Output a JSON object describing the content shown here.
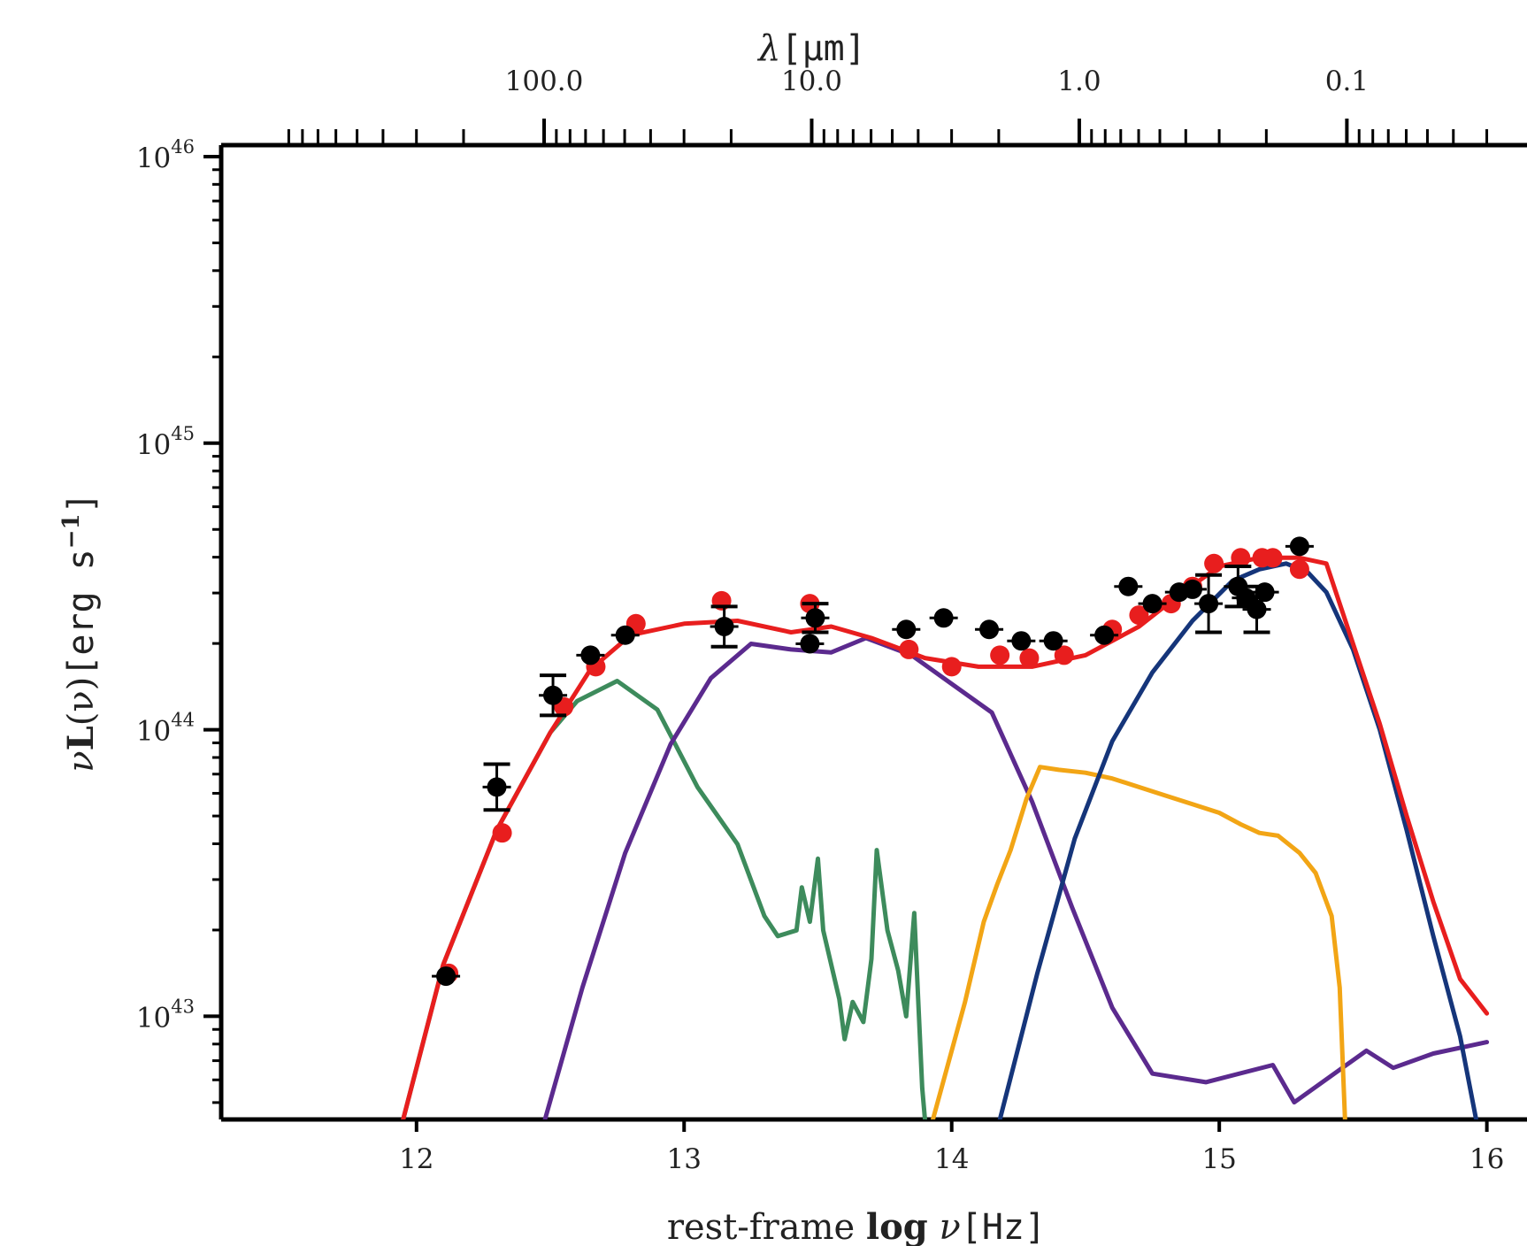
{
  "chart_data": {
    "type": "line",
    "title": "",
    "xlabel_prefix": "rest-frame ",
    "xlabel_bold": "log",
    "xlabel_var": " ν",
    "xlabel_unit": "[Hz]",
    "ylabel_var": "ν",
    "ylabel_bold": "L",
    "ylabel_arg": "(ν)",
    "ylabel_unit": "[erg s",
    "ylabel_unit_exp": "−1",
    "ylabel_unit_end": "]",
    "top_axis_label_var": "λ",
    "top_axis_label_unit": "[μm]",
    "y_scale": "log",
    "xlim": [
      11.27,
      16.15
    ],
    "ylim_log10": [
      42.64,
      46.04
    ],
    "x_ticks": [
      {
        "value": 12,
        "label": "12"
      },
      {
        "value": 13,
        "label": "13"
      },
      {
        "value": 14,
        "label": "14"
      },
      {
        "value": 15,
        "label": "15"
      },
      {
        "value": 16,
        "label": "16"
      }
    ],
    "y_ticks": [
      {
        "log_value": 43,
        "base": "10",
        "exp": "43"
      },
      {
        "log_value": 44,
        "base": "10",
        "exp": "44"
      },
      {
        "log_value": 45,
        "base": "10",
        "exp": "45"
      },
      {
        "log_value": 46,
        "base": "10",
        "exp": "46"
      }
    ],
    "top_ticks": [
      {
        "wavelength_um": 100.0,
        "label": "100.0"
      },
      {
        "wavelength_um": 10.0,
        "label": "10.0"
      },
      {
        "wavelength_um": 1.0,
        "label": "1.0"
      },
      {
        "wavelength_um": 0.1,
        "label": "0.1"
      }
    ],
    "grid": false,
    "legend": "none",
    "series": [
      {
        "color": "#3d8b5c",
        "points": [
          [
            11.95,
            42.64
          ],
          [
            12.1,
            43.18
          ],
          [
            12.3,
            43.65
          ],
          [
            12.5,
            43.99
          ],
          [
            12.6,
            44.1
          ],
          [
            12.75,
            44.17
          ],
          [
            12.9,
            44.07
          ],
          [
            13.05,
            43.8
          ],
          [
            13.2,
            43.6
          ],
          [
            13.3,
            43.35
          ],
          [
            13.35,
            43.28
          ],
          [
            13.42,
            43.3
          ],
          [
            13.44,
            43.45
          ],
          [
            13.47,
            43.33
          ],
          [
            13.5,
            43.55
          ],
          [
            13.52,
            43.3
          ],
          [
            13.58,
            43.06
          ],
          [
            13.6,
            42.92
          ],
          [
            13.63,
            43.05
          ],
          [
            13.67,
            42.98
          ],
          [
            13.7,
            43.2
          ],
          [
            13.72,
            43.58
          ],
          [
            13.76,
            43.3
          ],
          [
            13.8,
            43.16
          ],
          [
            13.83,
            43.0
          ],
          [
            13.86,
            43.36
          ],
          [
            13.89,
            42.75
          ],
          [
            13.9,
            42.64
          ]
        ]
      },
      {
        "color": "#5b2a8e",
        "points": [
          [
            12.48,
            42.64
          ],
          [
            12.62,
            43.1
          ],
          [
            12.78,
            43.57
          ],
          [
            12.95,
            43.95
          ],
          [
            13.1,
            44.18
          ],
          [
            13.25,
            44.3
          ],
          [
            13.4,
            44.28
          ],
          [
            13.55,
            44.27
          ],
          [
            13.68,
            44.32
          ],
          [
            13.85,
            44.26
          ],
          [
            14.0,
            44.16
          ],
          [
            14.15,
            44.06
          ],
          [
            14.3,
            43.75
          ],
          [
            14.45,
            43.38
          ],
          [
            14.6,
            43.03
          ],
          [
            14.75,
            42.8
          ],
          [
            14.95,
            42.77
          ],
          [
            15.2,
            42.83
          ],
          [
            15.28,
            42.7
          ],
          [
            15.55,
            42.88
          ],
          [
            15.65,
            42.82
          ],
          [
            15.8,
            42.87
          ],
          [
            16.0,
            42.91
          ]
        ]
      },
      {
        "color": "#f2a515",
        "points": [
          [
            13.93,
            42.64
          ],
          [
            14.05,
            43.05
          ],
          [
            14.12,
            43.33
          ],
          [
            14.17,
            43.46
          ],
          [
            14.22,
            43.58
          ],
          [
            14.28,
            43.76
          ],
          [
            14.33,
            43.87
          ],
          [
            14.4,
            43.86
          ],
          [
            14.5,
            43.85
          ],
          [
            14.6,
            43.83
          ],
          [
            14.7,
            43.8
          ],
          [
            14.8,
            43.77
          ],
          [
            14.9,
            43.74
          ],
          [
            15.0,
            43.71
          ],
          [
            15.08,
            43.67
          ],
          [
            15.15,
            43.64
          ],
          [
            15.22,
            43.63
          ],
          [
            15.3,
            43.57
          ],
          [
            15.36,
            43.5
          ],
          [
            15.42,
            43.35
          ],
          [
            15.45,
            43.1
          ],
          [
            15.47,
            42.64
          ]
        ]
      },
      {
        "color": "#15357a",
        "points": [
          [
            14.18,
            42.64
          ],
          [
            14.32,
            43.15
          ],
          [
            14.46,
            43.62
          ],
          [
            14.6,
            43.96
          ],
          [
            14.75,
            44.2
          ],
          [
            14.9,
            44.38
          ],
          [
            15.05,
            44.52
          ],
          [
            15.15,
            44.56
          ],
          [
            15.25,
            44.58
          ],
          [
            15.33,
            44.55
          ],
          [
            15.4,
            44.48
          ],
          [
            15.5,
            44.28
          ],
          [
            15.6,
            44.0
          ],
          [
            15.7,
            43.65
          ],
          [
            15.8,
            43.28
          ],
          [
            15.9,
            42.93
          ],
          [
            15.96,
            42.64
          ]
        ]
      },
      {
        "color": "#e81e1e",
        "points": [
          [
            11.95,
            42.64
          ],
          [
            12.1,
            43.18
          ],
          [
            12.3,
            43.65
          ],
          [
            12.5,
            43.99
          ],
          [
            12.65,
            44.21
          ],
          [
            12.8,
            44.33
          ],
          [
            13.0,
            44.37
          ],
          [
            13.2,
            44.38
          ],
          [
            13.4,
            44.34
          ],
          [
            13.55,
            44.36
          ],
          [
            13.7,
            44.32
          ],
          [
            13.9,
            44.25
          ],
          [
            14.1,
            44.22
          ],
          [
            14.3,
            44.22
          ],
          [
            14.5,
            44.26
          ],
          [
            14.7,
            44.36
          ],
          [
            14.85,
            44.47
          ],
          [
            15.0,
            44.57
          ],
          [
            15.15,
            44.6
          ],
          [
            15.3,
            44.6
          ],
          [
            15.4,
            44.58
          ],
          [
            15.5,
            44.3
          ],
          [
            15.6,
            44.02
          ],
          [
            15.7,
            43.7
          ],
          [
            15.8,
            43.4
          ],
          [
            15.9,
            43.13
          ],
          [
            16.0,
            43.01
          ]
        ]
      }
    ],
    "model_points_red": [
      [
        12.12,
        43.15
      ],
      [
        12.32,
        43.64
      ],
      [
        12.55,
        44.08
      ],
      [
        12.67,
        44.22
      ],
      [
        12.82,
        44.37
      ],
      [
        13.14,
        44.45
      ],
      [
        13.47,
        44.44
      ],
      [
        13.84,
        44.28
      ],
      [
        14.0,
        44.22
      ],
      [
        14.18,
        44.26
      ],
      [
        14.29,
        44.25
      ],
      [
        14.42,
        44.26
      ],
      [
        14.6,
        44.35
      ],
      [
        14.7,
        44.4
      ],
      [
        14.82,
        44.44
      ],
      [
        14.9,
        44.5
      ],
      [
        14.98,
        44.58
      ],
      [
        15.08,
        44.6
      ],
      [
        15.16,
        44.6
      ],
      [
        15.2,
        44.6
      ],
      [
        15.3,
        44.56
      ]
    ],
    "observed_points": [
      {
        "x": 12.11,
        "y": 43.14,
        "err": 0.0
      },
      {
        "x": 12.3,
        "y": 43.8,
        "err": 0.08
      },
      {
        "x": 12.51,
        "y": 44.12,
        "err": 0.07
      },
      {
        "x": 12.65,
        "y": 44.26,
        "err": 0.0
      },
      {
        "x": 12.78,
        "y": 44.33,
        "err": 0.0
      },
      {
        "x": 13.15,
        "y": 44.36,
        "err": 0.07
      },
      {
        "x": 13.47,
        "y": 44.3,
        "err": 0.0
      },
      {
        "x": 13.49,
        "y": 44.39,
        "err": 0.05
      },
      {
        "x": 13.83,
        "y": 44.35,
        "err": 0.0
      },
      {
        "x": 13.97,
        "y": 44.39,
        "err": 0.0
      },
      {
        "x": 14.14,
        "y": 44.35,
        "err": 0.0
      },
      {
        "x": 14.26,
        "y": 44.31,
        "err": 0.0
      },
      {
        "x": 14.38,
        "y": 44.31,
        "err": 0.0
      },
      {
        "x": 14.57,
        "y": 44.33,
        "err": 0.0
      },
      {
        "x": 14.66,
        "y": 44.5,
        "err": 0.0
      },
      {
        "x": 14.75,
        "y": 44.44,
        "err": 0.0
      },
      {
        "x": 14.85,
        "y": 44.48,
        "err": 0.0
      },
      {
        "x": 14.9,
        "y": 44.49,
        "err": 0.0
      },
      {
        "x": 14.96,
        "y": 44.44,
        "err": 0.1
      },
      {
        "x": 15.07,
        "y": 44.5,
        "err": 0.07
      },
      {
        "x": 15.1,
        "y": 44.46,
        "err": 0.0
      },
      {
        "x": 15.14,
        "y": 44.42,
        "err": 0.08
      },
      {
        "x": 15.17,
        "y": 44.48,
        "err": 0.0
      },
      {
        "x": 15.3,
        "y": 44.64,
        "err": 0.0
      }
    ]
  }
}
